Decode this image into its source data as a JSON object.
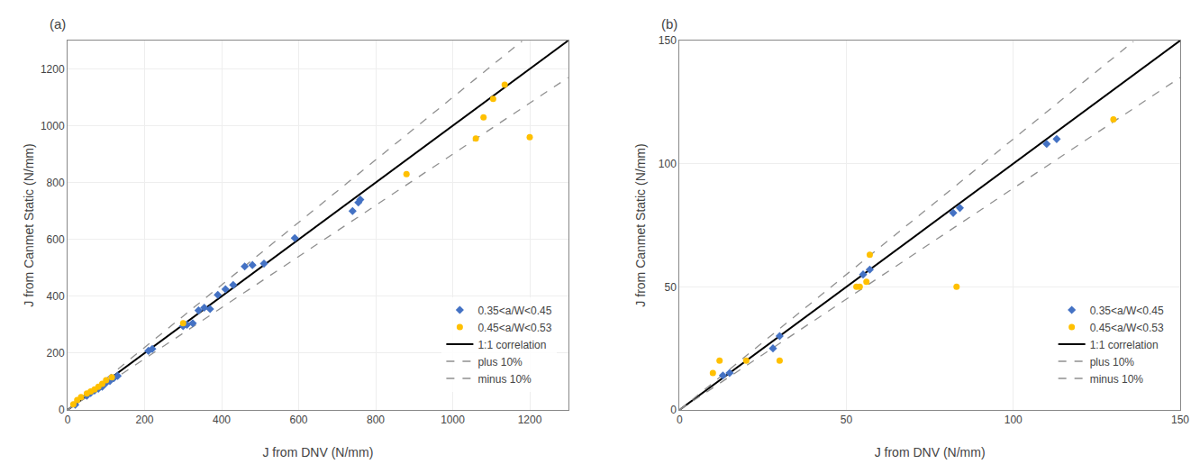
{
  "chart_data": [
    {
      "type": "scatter",
      "title": "(a)",
      "x_label": "J from DNV (N/mm)",
      "y_label": "J from Canmet Static (N/mm)",
      "xlim": [
        0,
        1300
      ],
      "ylim": [
        0,
        1300
      ],
      "xticks": [
        0,
        200,
        400,
        600,
        800,
        1000,
        1200
      ],
      "yticks": [
        0,
        200,
        400,
        600,
        800,
        1000,
        1200
      ],
      "grid": true,
      "legend": "lower right",
      "series": [
        {
          "name": "0.35<a/W<0.45",
          "type": "scatter",
          "marker": "diamond",
          "color": "#4472C4",
          "x": [
            20,
            50,
            60,
            70,
            80,
            90,
            100,
            110,
            120,
            130,
            210,
            220,
            300,
            310,
            325,
            340,
            355,
            370,
            390,
            410,
            430,
            460,
            480,
            510,
            590,
            740,
            755,
            760
          ],
          "values": [
            18,
            50,
            60,
            68,
            75,
            82,
            95,
            102,
            112,
            120,
            208,
            215,
            295,
            300,
            305,
            350,
            360,
            355,
            405,
            425,
            440,
            505,
            510,
            515,
            605,
            700,
            730,
            740
          ]
        },
        {
          "name": "0.45<a/W<0.53",
          "type": "scatter",
          "marker": "circle",
          "color": "#FFC000",
          "x": [
            15,
            25,
            35,
            50,
            60,
            70,
            80,
            90,
            100,
            115,
            300,
            880,
            1060,
            1080,
            1105,
            1135,
            1200
          ],
          "values": [
            20,
            35,
            45,
            58,
            65,
            72,
            82,
            92,
            105,
            115,
            305,
            830,
            955,
            1030,
            1095,
            1145,
            960
          ]
        },
        {
          "name": "1:1 correlation",
          "type": "line",
          "line_style": "solid",
          "color": "#000000",
          "x": [
            0,
            1300
          ],
          "values": [
            0,
            1300
          ]
        },
        {
          "name": "plus 10%",
          "type": "line",
          "line_style": "dashed",
          "color": "#909090",
          "x": [
            0,
            1180
          ],
          "values": [
            0,
            1298
          ]
        },
        {
          "name": "minus 10%",
          "type": "line",
          "line_style": "dashed",
          "color": "#909090",
          "x": [
            0,
            1300
          ],
          "values": [
            0,
            1170
          ]
        }
      ]
    },
    {
      "type": "scatter",
      "title": "(b)",
      "x_label": "J from DNV (N/mm)",
      "y_label": "J from Canmet Static (N/mm)",
      "xlim": [
        0,
        150
      ],
      "ylim": [
        0,
        150
      ],
      "xticks": [
        0,
        50,
        100,
        150
      ],
      "yticks": [
        0,
        50,
        100,
        150
      ],
      "grid": true,
      "legend": "lower right",
      "series": [
        {
          "name": "0.35<a/W<0.45",
          "type": "scatter",
          "marker": "diamond",
          "color": "#4472C4",
          "x": [
            13,
            15,
            28,
            30,
            55,
            57,
            82,
            84,
            110,
            113
          ],
          "values": [
            14,
            15,
            25,
            30,
            55,
            57,
            80,
            82,
            108,
            110
          ]
        },
        {
          "name": "0.45<a/W<0.53",
          "type": "scatter",
          "marker": "circle",
          "color": "#FFC000",
          "x": [
            10,
            12,
            20,
            30,
            53,
            54,
            56,
            57,
            83,
            130
          ],
          "values": [
            15,
            20,
            20,
            20,
            50,
            50,
            52,
            63,
            50,
            118
          ]
        },
        {
          "name": "1:1 correlation",
          "type": "line",
          "line_style": "solid",
          "color": "#000000",
          "x": [
            0,
            150
          ],
          "values": [
            0,
            150
          ]
        },
        {
          "name": "plus 10%",
          "type": "line",
          "line_style": "dashed",
          "color": "#909090",
          "x": [
            0,
            136
          ],
          "values": [
            0,
            149.6
          ]
        },
        {
          "name": "minus 10%",
          "type": "line",
          "line_style": "dashed",
          "color": "#909090",
          "x": [
            0,
            150
          ],
          "values": [
            0,
            135
          ]
        }
      ]
    }
  ]
}
